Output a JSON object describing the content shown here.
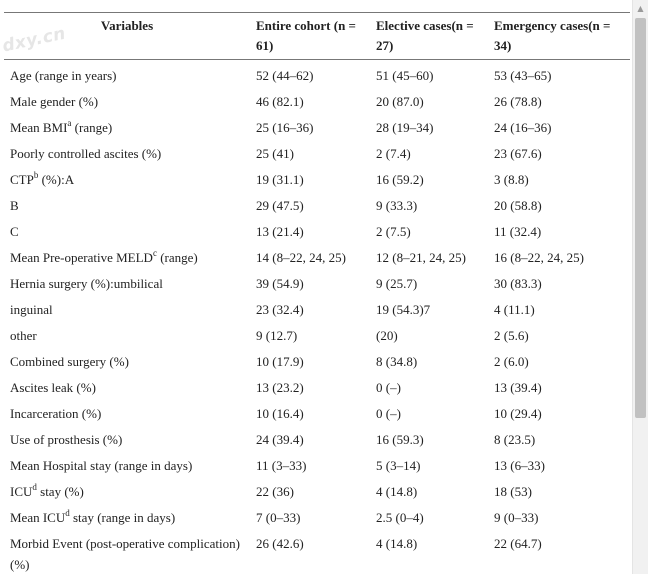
{
  "watermark": "dxy.cn",
  "table": {
    "headers": [
      "Variables",
      "Entire cohort (n = 61)",
      "Elective cases(n = 27)",
      "Emergency cases(n = 34)"
    ],
    "rows": [
      {
        "label": "Age (range in years)",
        "values": [
          "52 (44–62)",
          "51 (45–60)",
          "53 (43–65)"
        ]
      },
      {
        "label": "Male gender (%)",
        "values": [
          "46 (82.1)",
          "20 (87.0)",
          "26 (78.8)"
        ]
      },
      {
        "label_pre": "Mean BMI",
        "sup": "a",
        "label_post": " (range)",
        "values": [
          "25 (16–36)",
          "28 (19–34)",
          "24 (16–36)"
        ]
      },
      {
        "label": "Poorly controlled ascites (%)",
        "values": [
          "25 (41)",
          "2 (7.4)",
          "23 (67.6)"
        ]
      },
      {
        "label_pre": "CTP",
        "sup": "b",
        "label_post": " (%):A",
        "values": [
          "19 (31.1)",
          "16 (59.2)",
          "3 (8.8)"
        ]
      },
      {
        "label": "B",
        "values": [
          "29 (47.5)",
          "9 (33.3)",
          "20 (58.8)"
        ]
      },
      {
        "label": "C",
        "values": [
          "13 (21.4)",
          "2 (7.5)",
          "11 (32.4)"
        ]
      },
      {
        "label_pre": "Mean Pre-operative MELD",
        "sup": "c",
        "label_post": " (range)",
        "values": [
          "14 (8–22, 24, 25)",
          "12 (8–21, 24, 25)",
          "16 (8–22, 24, 25)"
        ]
      },
      {
        "label": "Hernia surgery (%):umbilical",
        "values": [
          "39 (54.9)",
          "9 (25.7)",
          "30 (83.3)"
        ]
      },
      {
        "label": "inguinal",
        "values": [
          "23 (32.4)",
          "19 (54.3)7",
          "4 (11.1)"
        ]
      },
      {
        "label": "other",
        "values": [
          "9 (12.7)",
          "(20)",
          "2 (5.6)"
        ]
      },
      {
        "label": "Combined surgery (%)",
        "values": [
          "10 (17.9)",
          "8 (34.8)",
          "2 (6.0)"
        ]
      },
      {
        "label": "Ascites leak (%)",
        "values": [
          "13 (23.2)",
          "0 (–)",
          "13 (39.4)"
        ]
      },
      {
        "label": "Incarceration (%)",
        "values": [
          "10 (16.4)",
          "0 (–)",
          "10 (29.4)"
        ]
      },
      {
        "label": "Use of prosthesis (%)",
        "values": [
          "24 (39.4)",
          "16 (59.3)",
          "8 (23.5)"
        ]
      },
      {
        "label": "Mean Hospital stay (range in days)",
        "values": [
          "11 (3–33)",
          "5 (3–14)",
          "13 (6–33)"
        ]
      },
      {
        "label_pre": "ICU",
        "sup": "d",
        "label_post": " stay (%)",
        "values": [
          "22 (36)",
          "4 (14.8)",
          "18 (53)"
        ]
      },
      {
        "label_pre": "Mean ICU",
        "sup": "d",
        "label_post": " stay (range in days)",
        "values": [
          "7 (0–33)",
          "2.5 (0–4)",
          "9 (0–33)"
        ]
      },
      {
        "label": "Morbid Event (post-operative complication) (%)",
        "values": [
          "26 (42.6)",
          "4 (14.8)",
          "22 (64.7)"
        ]
      }
    ]
  }
}
